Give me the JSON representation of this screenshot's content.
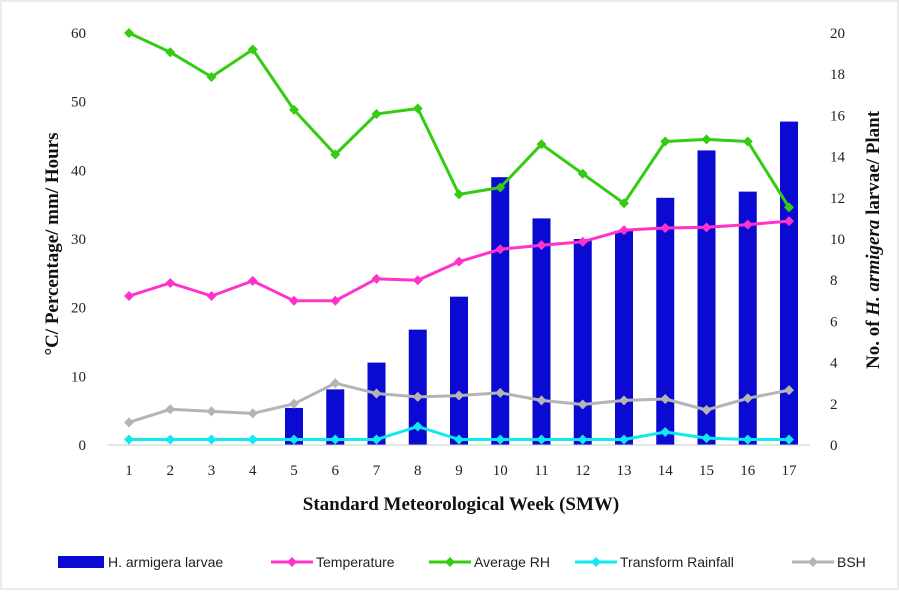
{
  "chart_data": {
    "type": "bar",
    "categories": [
      "1",
      "2",
      "3",
      "4",
      "5",
      "6",
      "7",
      "8",
      "9",
      "10",
      "11",
      "12",
      "13",
      "14",
      "15",
      "16",
      "17"
    ],
    "xlabel": "Standard Meteorological Week (SMW)",
    "ylabel_left": "°C/ Percentage/ mm/ Hours",
    "ylabel_right": {
      "prefix": "No. of ",
      "italic": "H. armigera",
      "suffix": " larvae/ Plant"
    },
    "ylim_left": [
      0,
      60
    ],
    "yticks_left": [
      0,
      10,
      20,
      30,
      40,
      50,
      60
    ],
    "ylim_right": [
      0,
      20
    ],
    "yticks_right": [
      0,
      2,
      4,
      6,
      8,
      10,
      12,
      14,
      16,
      18,
      20
    ],
    "legend_position": "bottom",
    "grid": false,
    "series": [
      {
        "name": "H. armigera larvae",
        "kind": "bar",
        "axis": "right",
        "color": "#0a0ad2",
        "values": [
          0,
          0,
          0,
          0,
          1.8,
          2.7,
          4.0,
          5.6,
          7.2,
          13.0,
          11.0,
          10.0,
          10.4,
          12.0,
          14.3,
          12.3,
          15.7
        ]
      },
      {
        "name": "Temperature",
        "kind": "line",
        "axis": "left",
        "color": "#ff33cc",
        "values": [
          21.7,
          23.6,
          21.7,
          23.9,
          21.0,
          21.0,
          24.2,
          24.0,
          26.7,
          28.5,
          29.1,
          29.6,
          31.3,
          31.6,
          31.7,
          32.1,
          32.6
        ]
      },
      {
        "name": "Average RH",
        "kind": "line",
        "axis": "left",
        "color": "#33cc11",
        "values": [
          60.0,
          57.2,
          53.6,
          57.6,
          48.8,
          42.3,
          48.2,
          49.0,
          36.5,
          37.5,
          43.8,
          39.5,
          35.2,
          44.2,
          44.5,
          44.2,
          34.6
        ]
      },
      {
        "name": "Transform Rainfall",
        "kind": "line",
        "axis": "left",
        "color": "#11e8f0",
        "values": [
          0.8,
          0.8,
          0.8,
          0.8,
          0.8,
          0.8,
          0.8,
          2.7,
          0.8,
          0.8,
          0.8,
          0.8,
          0.8,
          1.9,
          1.0,
          0.8,
          0.8
        ]
      },
      {
        "name": "BSH",
        "kind": "line",
        "axis": "left",
        "color": "#b4b4b4",
        "values": [
          3.3,
          5.2,
          4.9,
          4.6,
          6.0,
          9.0,
          7.5,
          7.0,
          7.2,
          7.6,
          6.5,
          5.9,
          6.5,
          6.7,
          5.1,
          6.8,
          8.0
        ]
      }
    ]
  }
}
